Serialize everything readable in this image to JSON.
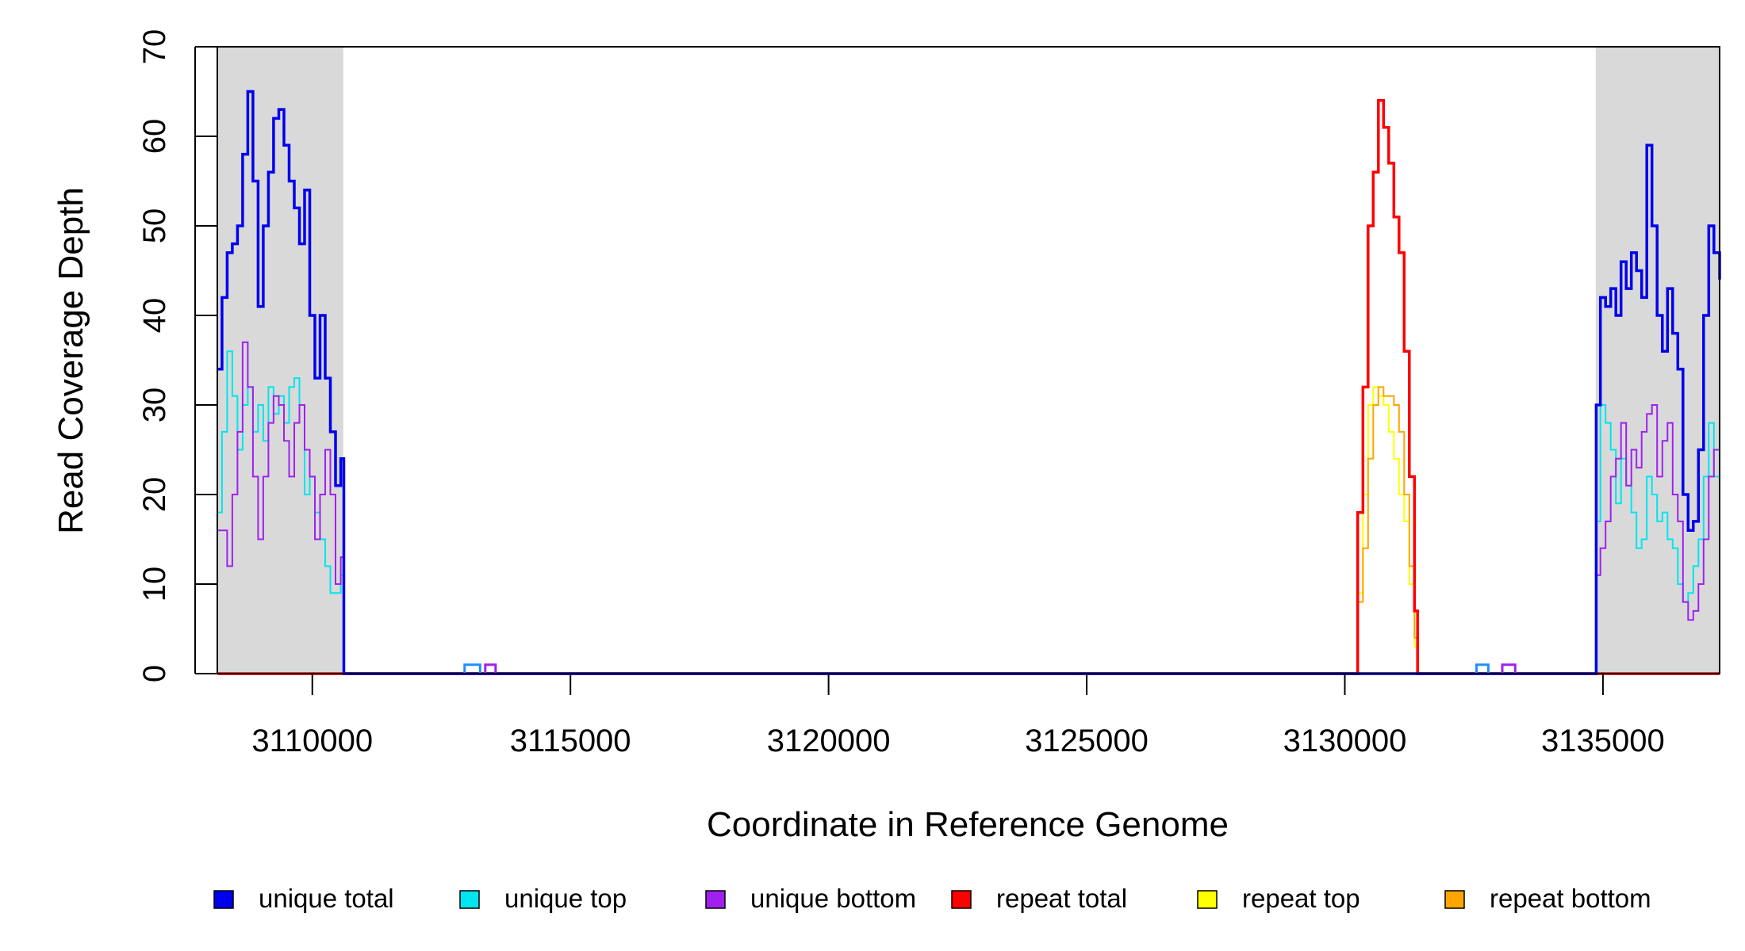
{
  "chart_data": {
    "type": "line",
    "xlabel": "Coordinate in Reference Genome",
    "ylabel": "Read Coverage Depth",
    "xlim": [
      3108160,
      3137260
    ],
    "ylim": [
      0,
      70
    ],
    "x_ticks": [
      3110000,
      3115000,
      3120000,
      3125000,
      3130000,
      3135000
    ],
    "y_ticks": [
      0,
      10,
      20,
      30,
      40,
      50,
      60,
      70
    ],
    "grid": false,
    "legend_position": "bottom",
    "shaded_regions": [
      {
        "x0": 3108160,
        "x1": 3110600,
        "color": "#d9d9d9"
      },
      {
        "x0": 3134860,
        "x1": 3137260,
        "color": "#d9d9d9"
      }
    ],
    "series": [
      {
        "name": "unique total",
        "color": "#0000ee",
        "x": [
          3108160,
          3108250,
          3108350,
          3108450,
          3108550,
          3108650,
          3108750,
          3108850,
          3108950,
          3109050,
          3109150,
          3109250,
          3109350,
          3109450,
          3109550,
          3109650,
          3109750,
          3109850,
          3109950,
          3110050,
          3110150,
          3110250,
          3110350,
          3110450,
          3110550,
          3110600,
          3110610,
          3134860,
          3134870,
          3134950,
          3135050,
          3135150,
          3135250,
          3135350,
          3135450,
          3135550,
          3135650,
          3135750,
          3135850,
          3135950,
          3136050,
          3136150,
          3136250,
          3136350,
          3136450,
          3136550,
          3136650,
          3136750,
          3136850,
          3136950,
          3137050,
          3137150,
          3137260
        ],
        "y": [
          34,
          42,
          47,
          48,
          50,
          58,
          65,
          55,
          41,
          50,
          56,
          62,
          63,
          59,
          55,
          52,
          48,
          54,
          40,
          33,
          40,
          33,
          27,
          21,
          24,
          24,
          0,
          0,
          30,
          42,
          41,
          43,
          40,
          46,
          43,
          47,
          45,
          42,
          59,
          50,
          40,
          36,
          43,
          38,
          34,
          20,
          16,
          17,
          25,
          40,
          50,
          47,
          44
        ]
      },
      {
        "name": "unique top",
        "color": "#00e5ee",
        "x": [
          3108160,
          3108250,
          3108350,
          3108450,
          3108550,
          3108650,
          3108750,
          3108850,
          3108950,
          3109050,
          3109150,
          3109250,
          3109350,
          3109450,
          3109550,
          3109650,
          3109750,
          3109850,
          3109950,
          3110050,
          3110150,
          3110250,
          3110350,
          3110450,
          3110550,
          3110600,
          3110610,
          3134860,
          3134870,
          3134950,
          3135050,
          3135150,
          3135250,
          3135350,
          3135450,
          3135550,
          3135650,
          3135750,
          3135850,
          3135950,
          3136050,
          3136150,
          3136250,
          3136350,
          3136450,
          3136550,
          3136650,
          3136750,
          3136850,
          3136950,
          3137050,
          3137150,
          3137260
        ],
        "y": [
          18,
          27,
          36,
          31,
          25,
          30,
          32,
          27,
          30,
          26,
          32,
          29,
          31,
          28,
          32,
          33,
          30,
          20,
          22,
          18,
          15,
          12,
          9,
          9,
          11,
          11,
          0,
          0,
          17,
          30,
          28,
          25,
          19,
          24,
          21,
          18,
          14,
          15,
          22,
          20,
          17,
          18,
          15,
          14,
          10,
          8,
          9,
          12,
          15,
          22,
          28,
          22,
          20
        ]
      },
      {
        "name": "unique bottom",
        "color": "#a020f0",
        "x": [
          3108160,
          3108250,
          3108350,
          3108450,
          3108550,
          3108650,
          3108750,
          3108850,
          3108950,
          3109050,
          3109150,
          3109250,
          3109350,
          3109450,
          3109550,
          3109650,
          3109750,
          3109850,
          3109950,
          3110050,
          3110150,
          3110250,
          3110350,
          3110450,
          3110550,
          3110600,
          3110610,
          3134860,
          3134870,
          3134950,
          3135050,
          3135150,
          3135250,
          3135350,
          3135450,
          3135550,
          3135650,
          3135750,
          3135850,
          3135950,
          3136050,
          3136150,
          3136250,
          3136350,
          3136450,
          3136550,
          3136650,
          3136750,
          3136850,
          3136950,
          3137050,
          3137150,
          3137260
        ],
        "y": [
          16,
          16,
          12,
          20,
          27,
          37,
          32,
          22,
          15,
          22,
          28,
          31,
          30,
          26,
          22,
          28,
          30,
          25,
          22,
          15,
          20,
          25,
          20,
          10,
          13,
          13,
          0,
          0,
          11,
          14,
          17,
          22,
          24,
          28,
          21,
          25,
          23,
          27,
          29,
          30,
          22,
          26,
          28,
          20,
          17,
          8,
          6,
          7,
          10,
          15,
          22,
          25,
          27
        ]
      },
      {
        "name": "repeat total",
        "color": "#ff0000",
        "x": [
          3108160,
          3130150,
          3130250,
          3130350,
          3130450,
          3130550,
          3130650,
          3130750,
          3130850,
          3130950,
          3131050,
          3131150,
          3131250,
          3131350,
          3131410,
          3137260
        ],
        "y": [
          0,
          0,
          18,
          32,
          50,
          56,
          64,
          61,
          57,
          51,
          47,
          36,
          22,
          7,
          0,
          0
        ]
      },
      {
        "name": "repeat top",
        "color": "#ffff00",
        "x": [
          3108160,
          3130150,
          3130250,
          3130350,
          3130450,
          3130550,
          3130650,
          3130750,
          3130850,
          3130950,
          3131050,
          3131150,
          3131250,
          3131350,
          3131410,
          3137260
        ],
        "y": [
          0,
          0,
          9,
          20,
          30,
          32,
          31,
          30,
          27,
          24,
          20,
          17,
          10,
          3,
          0,
          0
        ]
      },
      {
        "name": "repeat bottom",
        "color": "#ffa500",
        "x": [
          3108160,
          3130150,
          3130250,
          3130350,
          3130450,
          3130550,
          3130650,
          3130750,
          3130850,
          3130950,
          3131050,
          3131150,
          3131250,
          3131350,
          3131410,
          3137260
        ],
        "y": [
          0,
          0,
          8,
          14,
          24,
          30,
          32,
          31,
          31,
          30,
          27,
          20,
          12,
          4,
          0,
          0
        ]
      }
    ],
    "minor_features": [
      {
        "x0": 3112950,
        "x1": 3113250,
        "y": 1,
        "color": "#1e90ff"
      },
      {
        "x0": 3113350,
        "x1": 3113550,
        "y": 1,
        "color": "#a020f0"
      },
      {
        "x0": 3132550,
        "x1": 3132780,
        "y": 1,
        "color": "#1e90ff"
      },
      {
        "x0": 3133050,
        "x1": 3133300,
        "y": 1,
        "color": "#a020f0"
      }
    ]
  }
}
